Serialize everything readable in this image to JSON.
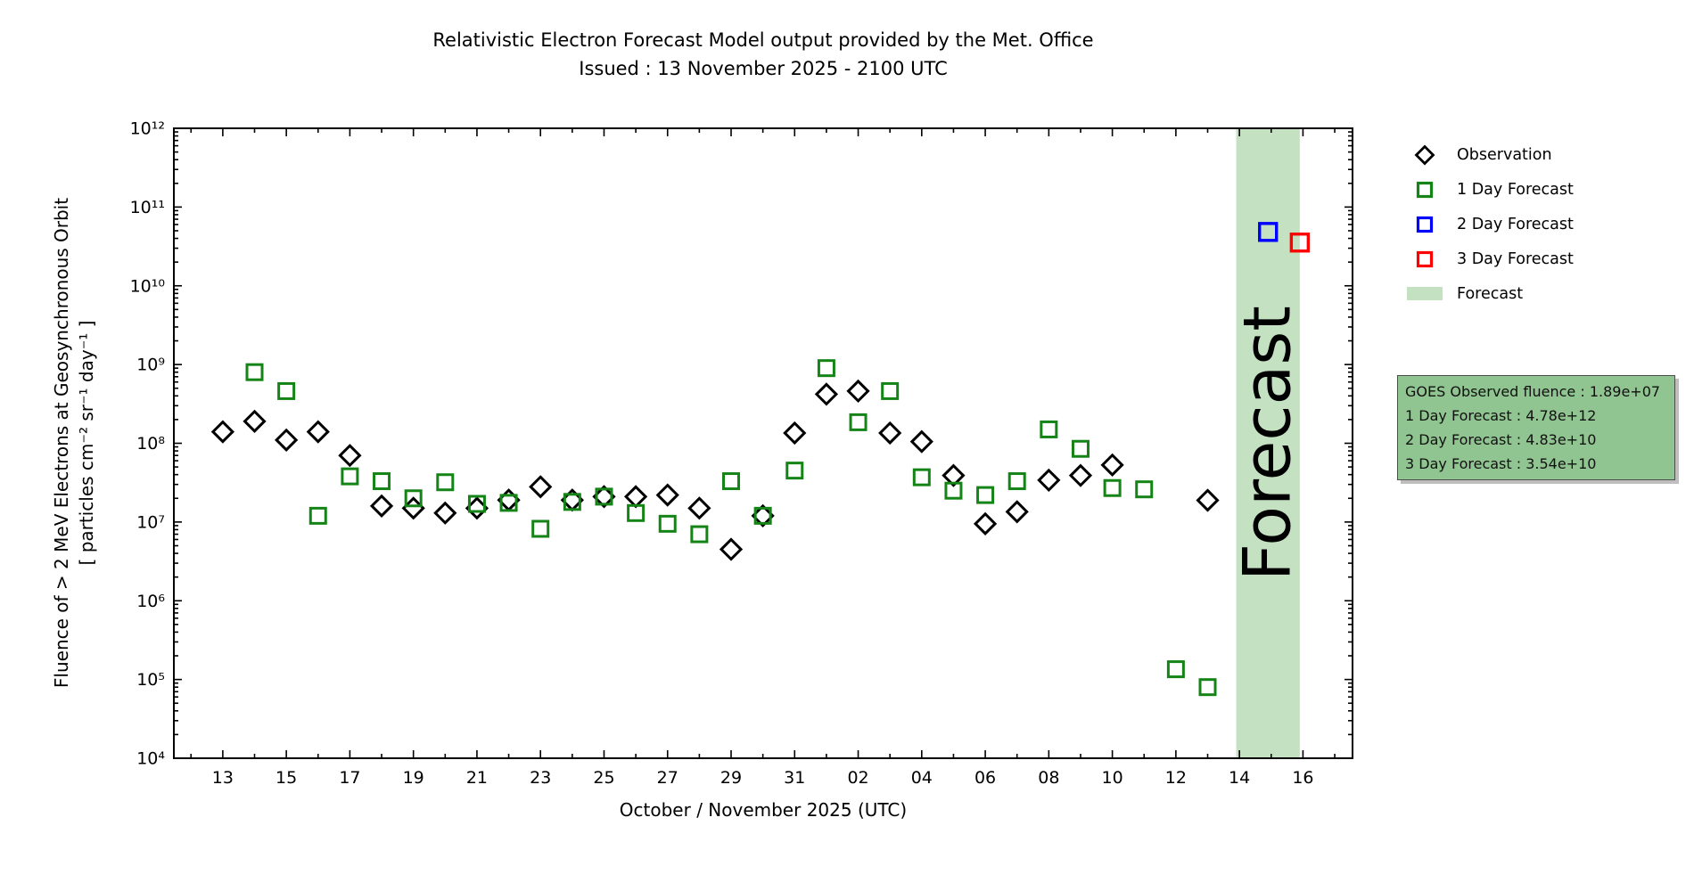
{
  "figure": {
    "title_line1": "Relativistic Electron Forecast Model output provided by the Met. Office",
    "title_line2": "Issued : 13 November 2025 - 2100 UTC"
  },
  "axes": {
    "xlabel": "October / November 2025 (UTC)",
    "ylabel_line1": "Fluence of > 2 MeV Electrons at Geosynchronous Orbit",
    "ylabel_line2": "[ particles cm⁻² sr⁻¹ day⁻¹ ]"
  },
  "legend": {
    "items": [
      {
        "label": "Observation",
        "marker": "diamond",
        "color": "#000000"
      },
      {
        "label": "1 Day Forecast",
        "marker": "square",
        "color": "#148416"
      },
      {
        "label": "2 Day Forecast",
        "marker": "square",
        "color": "#0000ff"
      },
      {
        "label": "3 Day Forecast",
        "marker": "square",
        "color": "#ff0000"
      },
      {
        "label": "Forecast",
        "marker": "patch",
        "color": "#c4e2c2"
      }
    ]
  },
  "info_box": {
    "lines": [
      "GOES Observed fluence : 1.89e+07",
      "1 Day Forecast : 4.78e+12",
      "2 Day Forecast : 4.83e+10",
      "3 Day Forecast : 3.54e+10"
    ],
    "bg_color": "#90c490"
  },
  "chart_data": {
    "type": "scatter",
    "title": "Relativistic Electron Forecast Model output provided by the Met. Office",
    "subtitle": "Issued : 13 November 2025 - 2100 UTC",
    "xlabel": "October / November 2025 (UTC)",
    "ylabel": "Fluence of > 2 MeV Electrons at Geosynchronous Orbit [ particles cm-2 sr-1 day-1 ]",
    "y_scale": "log",
    "ylim": [
      10000,
      1000000000000
    ],
    "xlim_days": [
      -1.54,
      35.56
    ],
    "x_unit": "day offset from 2025-10-13",
    "grid": false,
    "legend_position": "right",
    "x_major_ticks": [
      {
        "d": 0,
        "label": "13"
      },
      {
        "d": 2,
        "label": "15"
      },
      {
        "d": 4,
        "label": "17"
      },
      {
        "d": 6,
        "label": "19"
      },
      {
        "d": 8,
        "label": "21"
      },
      {
        "d": 10,
        "label": "23"
      },
      {
        "d": 12,
        "label": "25"
      },
      {
        "d": 14,
        "label": "27"
      },
      {
        "d": 16,
        "label": "29"
      },
      {
        "d": 18,
        "label": "31"
      },
      {
        "d": 20,
        "label": "02"
      },
      {
        "d": 22,
        "label": "04"
      },
      {
        "d": 24,
        "label": "06"
      },
      {
        "d": 26,
        "label": "08"
      },
      {
        "d": 28,
        "label": "10"
      },
      {
        "d": 30,
        "label": "12"
      },
      {
        "d": 32,
        "label": "14"
      },
      {
        "d": 34,
        "label": "16"
      }
    ],
    "y_major_tick_exponents": [
      4,
      5,
      6,
      7,
      8,
      9,
      10,
      11,
      12
    ],
    "band": {
      "from_d": 31.9,
      "to_d": 33.9,
      "label": "Forecast",
      "color": "#c4e2c2",
      "label_color": "#7d967d"
    },
    "points_format": [
      "day_offset_from_oct13",
      "date",
      "fluence"
    ],
    "series": [
      {
        "name": "Observation",
        "marker": "diamond",
        "color": "#000000",
        "msize": 22,
        "mstroke": 3,
        "points": [
          [
            0,
            "Oct 13",
            140000000.0
          ],
          [
            1,
            "Oct 14",
            190000000.0
          ],
          [
            2,
            "Oct 15",
            110000000.0
          ],
          [
            3,
            "Oct 16",
            140000000.0
          ],
          [
            4,
            "Oct 17",
            70000000.0
          ],
          [
            5,
            "Oct 18",
            16000000.0
          ],
          [
            6,
            "Oct 19",
            15000000.0
          ],
          [
            7,
            "Oct 20",
            13000000.0
          ],
          [
            8,
            "Oct 21",
            15000000.0
          ],
          [
            9,
            "Oct 22",
            19000000.0
          ],
          [
            10,
            "Oct 23",
            28000000.0
          ],
          [
            11,
            "Oct 24",
            19000000.0
          ],
          [
            12,
            "Oct 25",
            21000000.0
          ],
          [
            13,
            "Oct 26",
            21000000.0
          ],
          [
            14,
            "Oct 27",
            22000000.0
          ],
          [
            15,
            "Oct 28",
            15000000.0
          ],
          [
            16,
            "Oct 29",
            4500000.0
          ],
          [
            17,
            "Oct 30",
            12000000.0
          ],
          [
            18,
            "Oct 31",
            135000000.0
          ],
          [
            19,
            "Nov 01",
            420000000.0
          ],
          [
            20,
            "Nov 02",
            460000000.0
          ],
          [
            21,
            "Nov 03",
            135000000.0
          ],
          [
            22,
            "Nov 04",
            105000000.0
          ],
          [
            23,
            "Nov 05",
            39000000.0
          ],
          [
            24,
            "Nov 06",
            9500000.0
          ],
          [
            25,
            "Nov 07",
            13500000.0
          ],
          [
            26,
            "Nov 08",
            34000000.0
          ],
          [
            27,
            "Nov 09",
            39000000.0
          ],
          [
            28,
            "Nov 10",
            53000000.0
          ],
          [
            31,
            "Nov 13",
            18900000.0
          ]
        ]
      },
      {
        "name": "1 Day Forecast",
        "marker": "square",
        "color": "#148416",
        "msize": 17,
        "mstroke": 3,
        "points": [
          [
            1,
            "Oct 14",
            800000000.0
          ],
          [
            2,
            "Oct 15",
            460000000.0
          ],
          [
            3,
            "Oct 16",
            12000000.0
          ],
          [
            4,
            "Oct 17",
            38000000.0
          ],
          [
            5,
            "Oct 18",
            33000000.0
          ],
          [
            6,
            "Oct 19",
            20000000.0
          ],
          [
            7,
            "Oct 20",
            32000000.0
          ],
          [
            8,
            "Oct 21",
            17000000.0
          ],
          [
            9,
            "Oct 22",
            17500000.0
          ],
          [
            10,
            "Oct 23",
            8200000.0
          ],
          [
            11,
            "Oct 24",
            18000000.0
          ],
          [
            12,
            "Oct 25",
            21000000.0
          ],
          [
            13,
            "Oct 26",
            13000000.0
          ],
          [
            14,
            "Oct 27",
            9500000.0
          ],
          [
            15,
            "Oct 28",
            7000000.0
          ],
          [
            16,
            "Oct 29",
            33000000.0
          ],
          [
            17,
            "Oct 30",
            12000000.0
          ],
          [
            18,
            "Oct 31",
            45000000.0
          ],
          [
            19,
            "Nov 01",
            900000000.0
          ],
          [
            20,
            "Nov 02",
            185000000.0
          ],
          [
            21,
            "Nov 03",
            460000000.0
          ],
          [
            22,
            "Nov 04",
            37000000.0
          ],
          [
            23,
            "Nov 05",
            25000000.0
          ],
          [
            24,
            "Nov 06",
            22000000.0
          ],
          [
            25,
            "Nov 07",
            33000000.0
          ],
          [
            26,
            "Nov 08",
            150000000.0
          ],
          [
            27,
            "Nov 09",
            85000000.0
          ],
          [
            28,
            "Nov 10",
            27000000.0
          ],
          [
            29,
            "Nov 11",
            26000000.0
          ],
          [
            30,
            "Nov 12",
            135000.0
          ],
          [
            31,
            "Nov 13",
            80000.0
          ],
          [
            31.9,
            "Nov 14",
            4780000000000.0
          ]
        ]
      },
      {
        "name": "2 Day Forecast",
        "marker": "square",
        "color": "#0000ff",
        "msize": 19,
        "mstroke": 3.4,
        "points": [
          [
            32.9,
            "Nov 15",
            48300000000.0
          ]
        ]
      },
      {
        "name": "3 Day Forecast",
        "marker": "square",
        "color": "#ff0000",
        "msize": 19,
        "mstroke": 3.4,
        "points": [
          [
            33.9,
            "Nov 16",
            35400000000.0
          ]
        ]
      }
    ]
  }
}
